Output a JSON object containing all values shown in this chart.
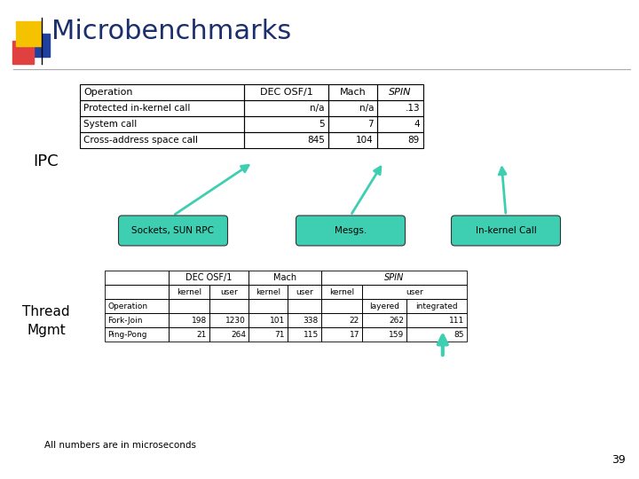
{
  "title": "Microbenchmarks",
  "title_color": "#1a2f6b",
  "title_fontsize": 22,
  "background_color": "#ffffff",
  "ipc_label": "IPC",
  "thread_label": "Thread\nMgmt",
  "footnote": "All numbers are in microseconds",
  "page_number": "39",
  "ipc_table": {
    "headers": [
      "Operation",
      "DEC OSF/1",
      "Mach",
      "SPIN"
    ],
    "rows": [
      [
        "Protected in-kernel call",
        "n/a",
        "n/a",
        ".13"
      ],
      [
        "System call",
        "5",
        "7",
        "4"
      ],
      [
        "Cross-address space call",
        "845",
        "104",
        "89"
      ]
    ]
  },
  "thread_table": {
    "rows": [
      [
        "Fork-Join",
        "198",
        "1230",
        "101",
        "338",
        "22",
        "262",
        "111"
      ],
      [
        "Ping-Pong",
        "21",
        "264",
        "71",
        "115",
        "17",
        "159",
        "85"
      ]
    ]
  },
  "callout_color": "#3ecfb2",
  "callout_labels": [
    "Sockets, SUN RPC",
    "Mesgs.",
    "In-kernel Call"
  ],
  "logo_colors": {
    "yellow": "#f5c200",
    "red": "#e04040",
    "blue": "#2040a0"
  }
}
